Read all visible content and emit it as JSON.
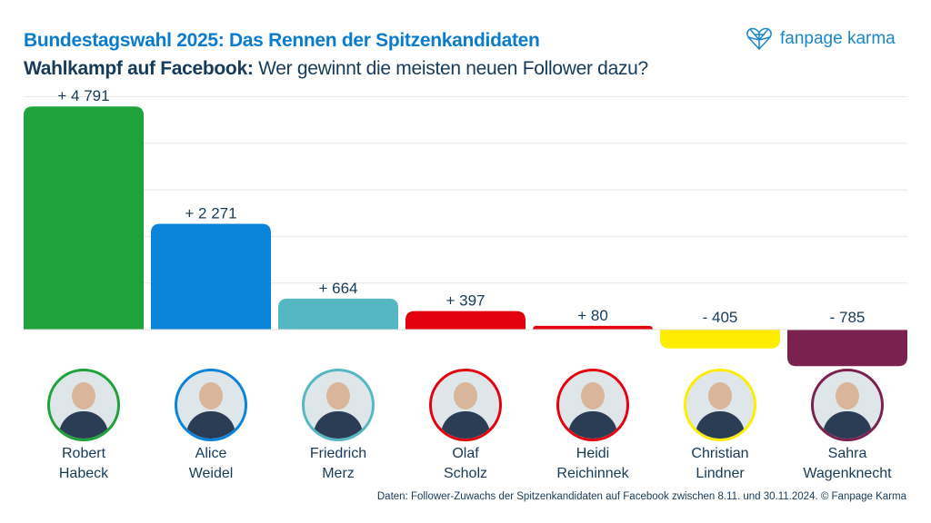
{
  "header": {
    "title": "Bundestagswahl 2025: Das Rennen der Spitzenkandidaten",
    "subtitle_bold": "Wahlkampf auf Facebook:",
    "subtitle_rest": "Wer gewinnt die meisten neuen Follower dazu?"
  },
  "logo": {
    "text": "fanpage karma",
    "icon": "heart-network-icon"
  },
  "footer": "Daten: Follower-Zuwachs der Spitzenkandidaten auf Facebook zwischen 8.11. und 30.11.2024. © Fanpage Karma",
  "chart_data": {
    "type": "bar",
    "categories": [
      "Robert Habeck",
      "Alice Weidel",
      "Friedrich Merz",
      "Olaf Scholz",
      "Heidi Reichinnek",
      "Christian Lindner",
      "Sahra Wagenknecht"
    ],
    "values": [
      4791,
      2271,
      664,
      397,
      80,
      -405,
      -785
    ],
    "labels": [
      "+ 4 791",
      "+ 2 271",
      "+ 664",
      "+ 397",
      "+ 80",
      "- 405",
      "- 785"
    ],
    "colors": [
      "#1fa23a",
      "#0a84d8",
      "#55b7c1",
      "#e3000f",
      "#e3000f",
      "#ffed00",
      "#7b2150"
    ],
    "ylim": [
      -785,
      5000
    ],
    "grid": true,
    "legend": "none"
  },
  "people": [
    {
      "first": "Robert",
      "last": "Habeck"
    },
    {
      "first": "Alice",
      "last": "Weidel"
    },
    {
      "first": "Friedrich",
      "last": "Merz"
    },
    {
      "first": "Olaf",
      "last": "Scholz"
    },
    {
      "first": "Heidi",
      "last": "Reichinnek"
    },
    {
      "first": "Christian",
      "last": "Lindner"
    },
    {
      "first": "Sahra",
      "last": "Wagenknecht"
    }
  ]
}
